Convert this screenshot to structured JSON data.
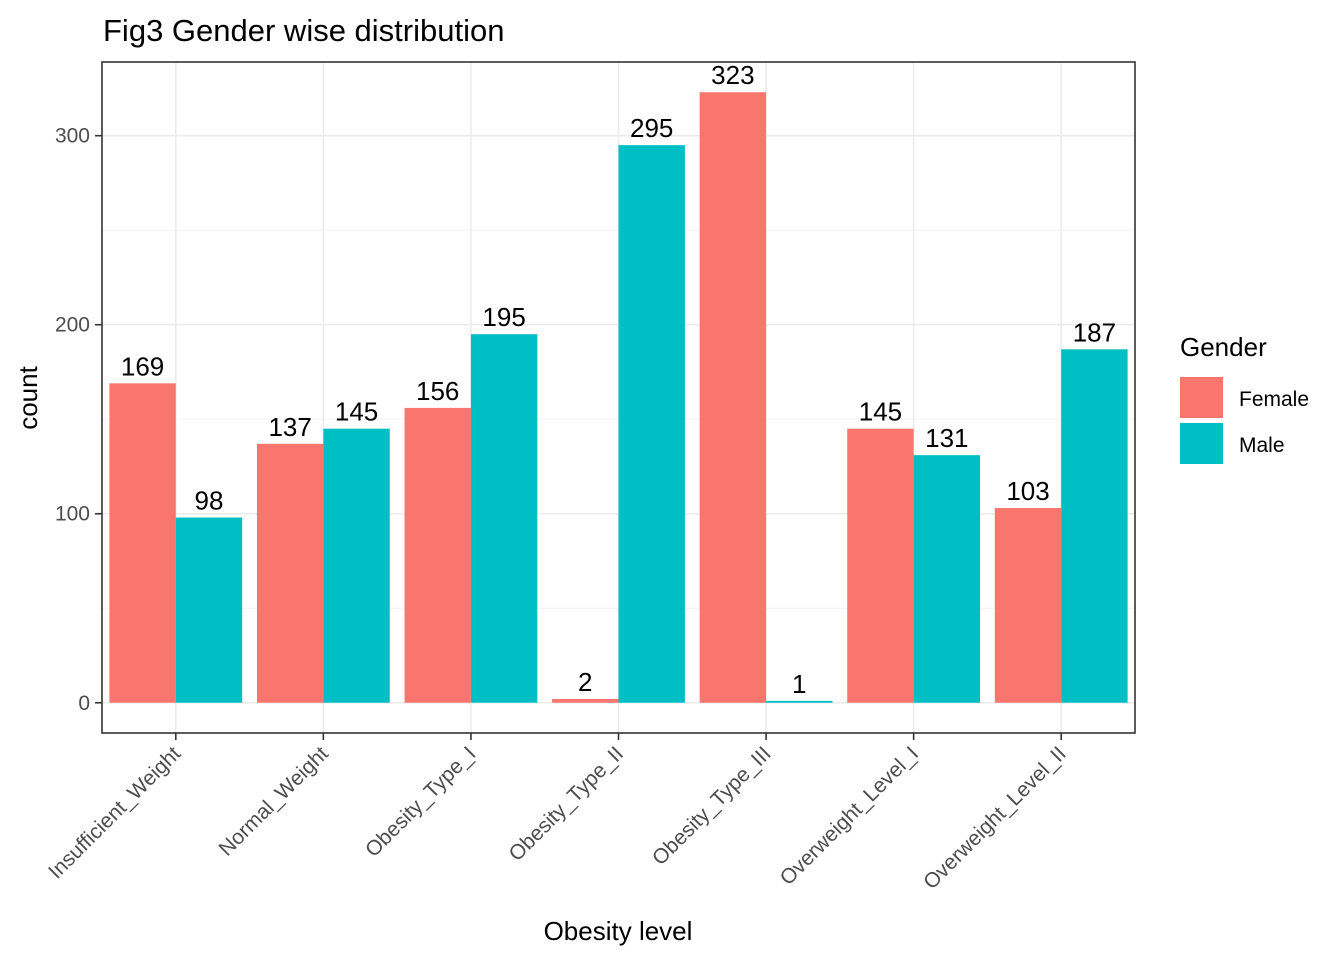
{
  "chart_data": {
    "type": "bar",
    "title": "Fig3 Gender wise distribution",
    "xlabel": "Obesity level",
    "ylabel": "count",
    "categories": [
      "Insufficient_Weight",
      "Normal_Weight",
      "Obesity_Type_I",
      "Obesity_Type_II",
      "Obesity_Type_III",
      "Overweight_Level_I",
      "Overweight_Level_II"
    ],
    "series": [
      {
        "name": "Female",
        "color": "#F8766D",
        "values": [
          169,
          137,
          156,
          2,
          323,
          145,
          103
        ]
      },
      {
        "name": "Male",
        "color": "#00BFC4",
        "values": [
          98,
          145,
          195,
          295,
          1,
          131,
          187
        ]
      }
    ],
    "ylim": [
      -16,
      339
    ],
    "yticks": [
      0,
      100,
      200,
      300
    ],
    "grid": true,
    "legend": {
      "title": "Gender",
      "position": "right"
    }
  }
}
